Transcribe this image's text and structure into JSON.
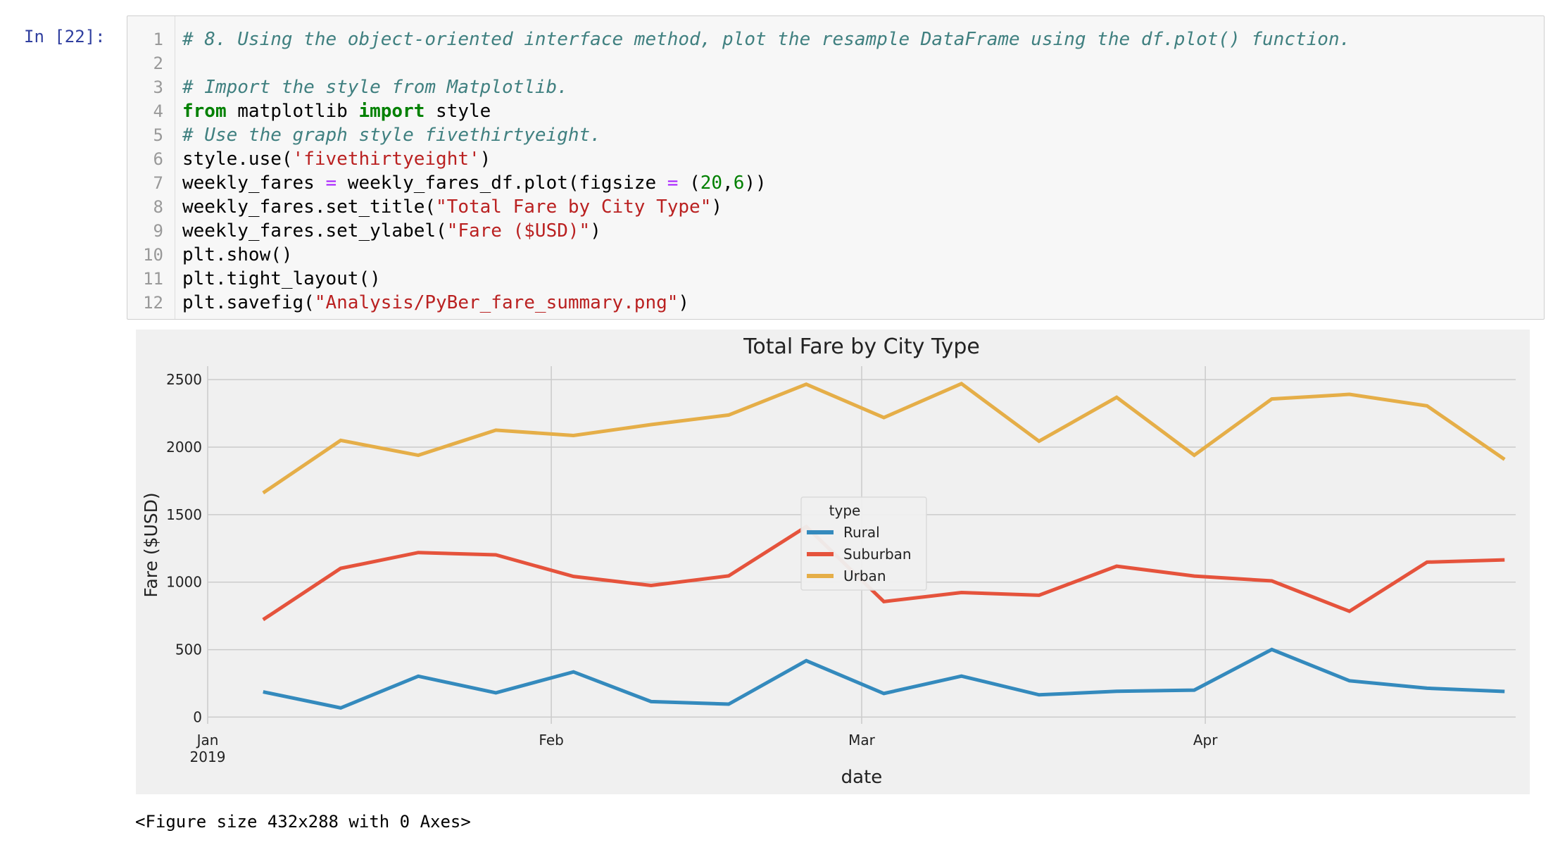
{
  "cell": {
    "prompt": "In [22]:",
    "lines": [
      {
        "no": "1",
        "tokens": [
          {
            "t": "# 8. Using the object-oriented interface method, plot the resample DataFrame using the df.plot() function.",
            "c": "cm"
          }
        ]
      },
      {
        "no": "2",
        "tokens": []
      },
      {
        "no": "3",
        "tokens": [
          {
            "t": "# Import the style from Matplotlib.",
            "c": "cm"
          }
        ]
      },
      {
        "no": "4",
        "tokens": [
          {
            "t": "from",
            "c": "kw"
          },
          {
            "t": " matplotlib ",
            "c": ""
          },
          {
            "t": "import",
            "c": "kw"
          },
          {
            "t": " style",
            "c": ""
          }
        ]
      },
      {
        "no": "5",
        "tokens": [
          {
            "t": "# Use the graph style fivethirtyeight.",
            "c": "cm"
          }
        ]
      },
      {
        "no": "6",
        "tokens": [
          {
            "t": "style.use(",
            "c": ""
          },
          {
            "t": "'fivethirtyeight'",
            "c": "st"
          },
          {
            "t": ")",
            "c": ""
          }
        ]
      },
      {
        "no": "7",
        "tokens": [
          {
            "t": "weekly_fares ",
            "c": ""
          },
          {
            "t": "=",
            "c": "op"
          },
          {
            "t": " weekly_fares_df.plot(figsize ",
            "c": ""
          },
          {
            "t": "=",
            "c": "op"
          },
          {
            "t": " (",
            "c": ""
          },
          {
            "t": "20",
            "c": "nm"
          },
          {
            "t": ",",
            "c": ""
          },
          {
            "t": "6",
            "c": "nm"
          },
          {
            "t": "))",
            "c": ""
          }
        ]
      },
      {
        "no": "8",
        "tokens": [
          {
            "t": "weekly_fares.set_title(",
            "c": ""
          },
          {
            "t": "\"Total Fare by City Type\"",
            "c": "st"
          },
          {
            "t": ")",
            "c": ""
          }
        ]
      },
      {
        "no": "9",
        "tokens": [
          {
            "t": "weekly_fares.set_ylabel(",
            "c": ""
          },
          {
            "t": "\"Fare ($USD)\"",
            "c": "st"
          },
          {
            "t": ")",
            "c": ""
          }
        ]
      },
      {
        "no": "10",
        "tokens": [
          {
            "t": "plt.show()",
            "c": ""
          }
        ]
      },
      {
        "no": "11",
        "tokens": [
          {
            "t": "plt.tight_layout()",
            "c": ""
          }
        ]
      },
      {
        "no": "12",
        "tokens": [
          {
            "t": "plt.savefig(",
            "c": ""
          },
          {
            "t": "\"Analysis/PyBer_fare_summary.png\"",
            "c": "st"
          },
          {
            "t": ")",
            "c": ""
          }
        ]
      }
    ]
  },
  "chart_data": {
    "type": "line",
    "title": "Total Fare by City Type",
    "xlabel": "date",
    "ylabel": "Fare ($USD)",
    "x": [
      "2019-01-06",
      "2019-01-13",
      "2019-01-20",
      "2019-01-27",
      "2019-02-03",
      "2019-02-10",
      "2019-02-17",
      "2019-02-24",
      "2019-03-03",
      "2019-03-10",
      "2019-03-17",
      "2019-03-24",
      "2019-03-31",
      "2019-04-07",
      "2019-04-14",
      "2019-04-21",
      "2019-04-28"
    ],
    "x_ticks": [
      {
        "date": "2019-01-01",
        "label": "Jan",
        "sublabel": "2019"
      },
      {
        "date": "2019-02-01",
        "label": "Feb",
        "sublabel": ""
      },
      {
        "date": "2019-03-01",
        "label": "Mar",
        "sublabel": ""
      },
      {
        "date": "2019-04-01",
        "label": "Apr",
        "sublabel": ""
      }
    ],
    "xlim": [
      "2019-01-01",
      "2019-04-29"
    ],
    "yticks": [
      0,
      500,
      1000,
      1500,
      2000,
      2500
    ],
    "ylim": [
      -50,
      2600
    ],
    "grid": true,
    "legend_title": "type",
    "legend_position": "center",
    "series": [
      {
        "name": "Rural",
        "color": "#348ABD",
        "values": [
          187,
          68,
          303,
          180,
          335,
          115,
          96,
          418,
          175,
          304,
          165,
          191,
          200,
          501,
          269,
          214,
          190
        ]
      },
      {
        "name": "Suburban",
        "color": "#E5533C",
        "values": [
          722,
          1102,
          1219,
          1202,
          1042,
          975,
          1046,
          1411,
          856,
          923,
          903,
          1118,
          1045,
          1009,
          784,
          1148,
          1165
        ]
      },
      {
        "name": "Urban",
        "color": "#E5AE48",
        "values": [
          1661,
          2050,
          1940,
          2126,
          2086,
          2167,
          2238,
          2466,
          2219,
          2470,
          2044,
          2369,
          1940,
          2357,
          2391,
          2306,
          1909
        ]
      }
    ]
  },
  "figure_text": "<Figure size 432x288 with 0 Axes>"
}
